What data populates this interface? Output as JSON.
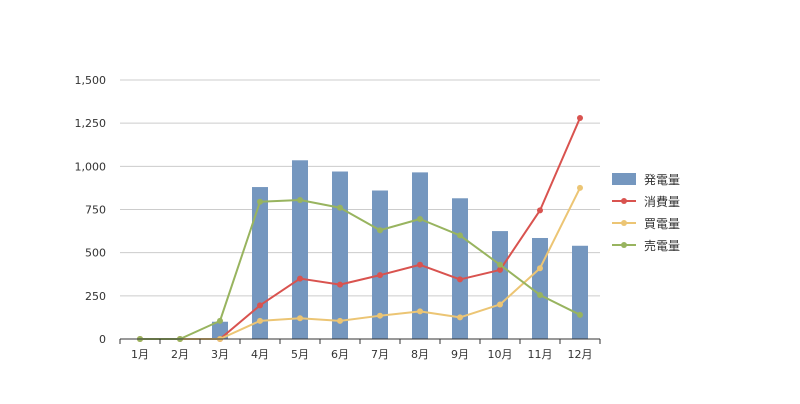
{
  "chart_data": {
    "type": "bar",
    "title": "",
    "xlabel": "",
    "ylabel": "",
    "categories": [
      "1月",
      "2月",
      "3月",
      "4月",
      "5月",
      "6月",
      "7月",
      "8月",
      "9月",
      "10月",
      "11月",
      "12月"
    ],
    "ylim": [
      0,
      1500
    ],
    "yticks": [
      0,
      250,
      500,
      750,
      1000,
      1250,
      1500
    ],
    "ytick_labels": [
      "0",
      "250",
      "500",
      "750",
      "1,000",
      "1,250",
      "1,500"
    ],
    "grid": true,
    "legend_position": "right",
    "series": [
      {
        "name": "発電量",
        "kind": "bar",
        "color": "#7597bf",
        "values": [
          0,
          0,
          100,
          880,
          1035,
          970,
          860,
          965,
          815,
          625,
          585,
          540
        ]
      },
      {
        "name": "消費量",
        "kind": "line",
        "color": "#d9534f",
        "values": [
          0,
          0,
          0,
          195,
          350,
          315,
          370,
          430,
          345,
          400,
          745,
          1280
        ]
      },
      {
        "name": "買電量",
        "kind": "line",
        "color": "#ecc574",
        "values": [
          0,
          0,
          0,
          105,
          120,
          105,
          135,
          160,
          125,
          200,
          410,
          875
        ]
      },
      {
        "name": "売電量",
        "kind": "line",
        "color": "#98b45f",
        "values": [
          0,
          0,
          105,
          795,
          805,
          760,
          630,
          695,
          600,
          430,
          255,
          140
        ]
      }
    ]
  }
}
